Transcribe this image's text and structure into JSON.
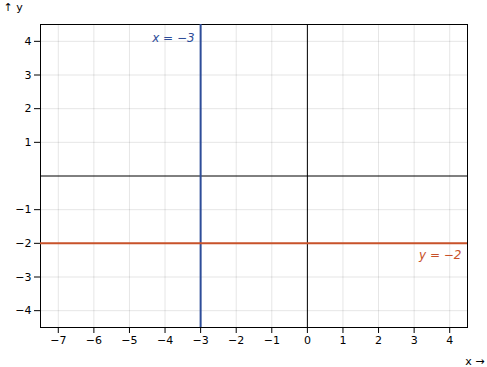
{
  "chart_data": {
    "type": "lines",
    "xlabel": "x",
    "ylabel": "y",
    "xlim": [
      -7.5,
      4.5
    ],
    "ylim": [
      -4.5,
      4.5
    ],
    "xticks": [
      -7,
      -6,
      -5,
      -4,
      -3,
      -2,
      -1,
      0,
      1,
      2,
      3,
      4
    ],
    "yticks": [
      -4,
      -3,
      -2,
      -1,
      1,
      2,
      3,
      4
    ],
    "grid": true,
    "vlines": [
      {
        "x": -3,
        "label": "x = −3",
        "color": "#2e4d99"
      }
    ],
    "hlines": [
      {
        "y": -2,
        "label": "y = −2",
        "color": "#c8522a"
      }
    ]
  }
}
